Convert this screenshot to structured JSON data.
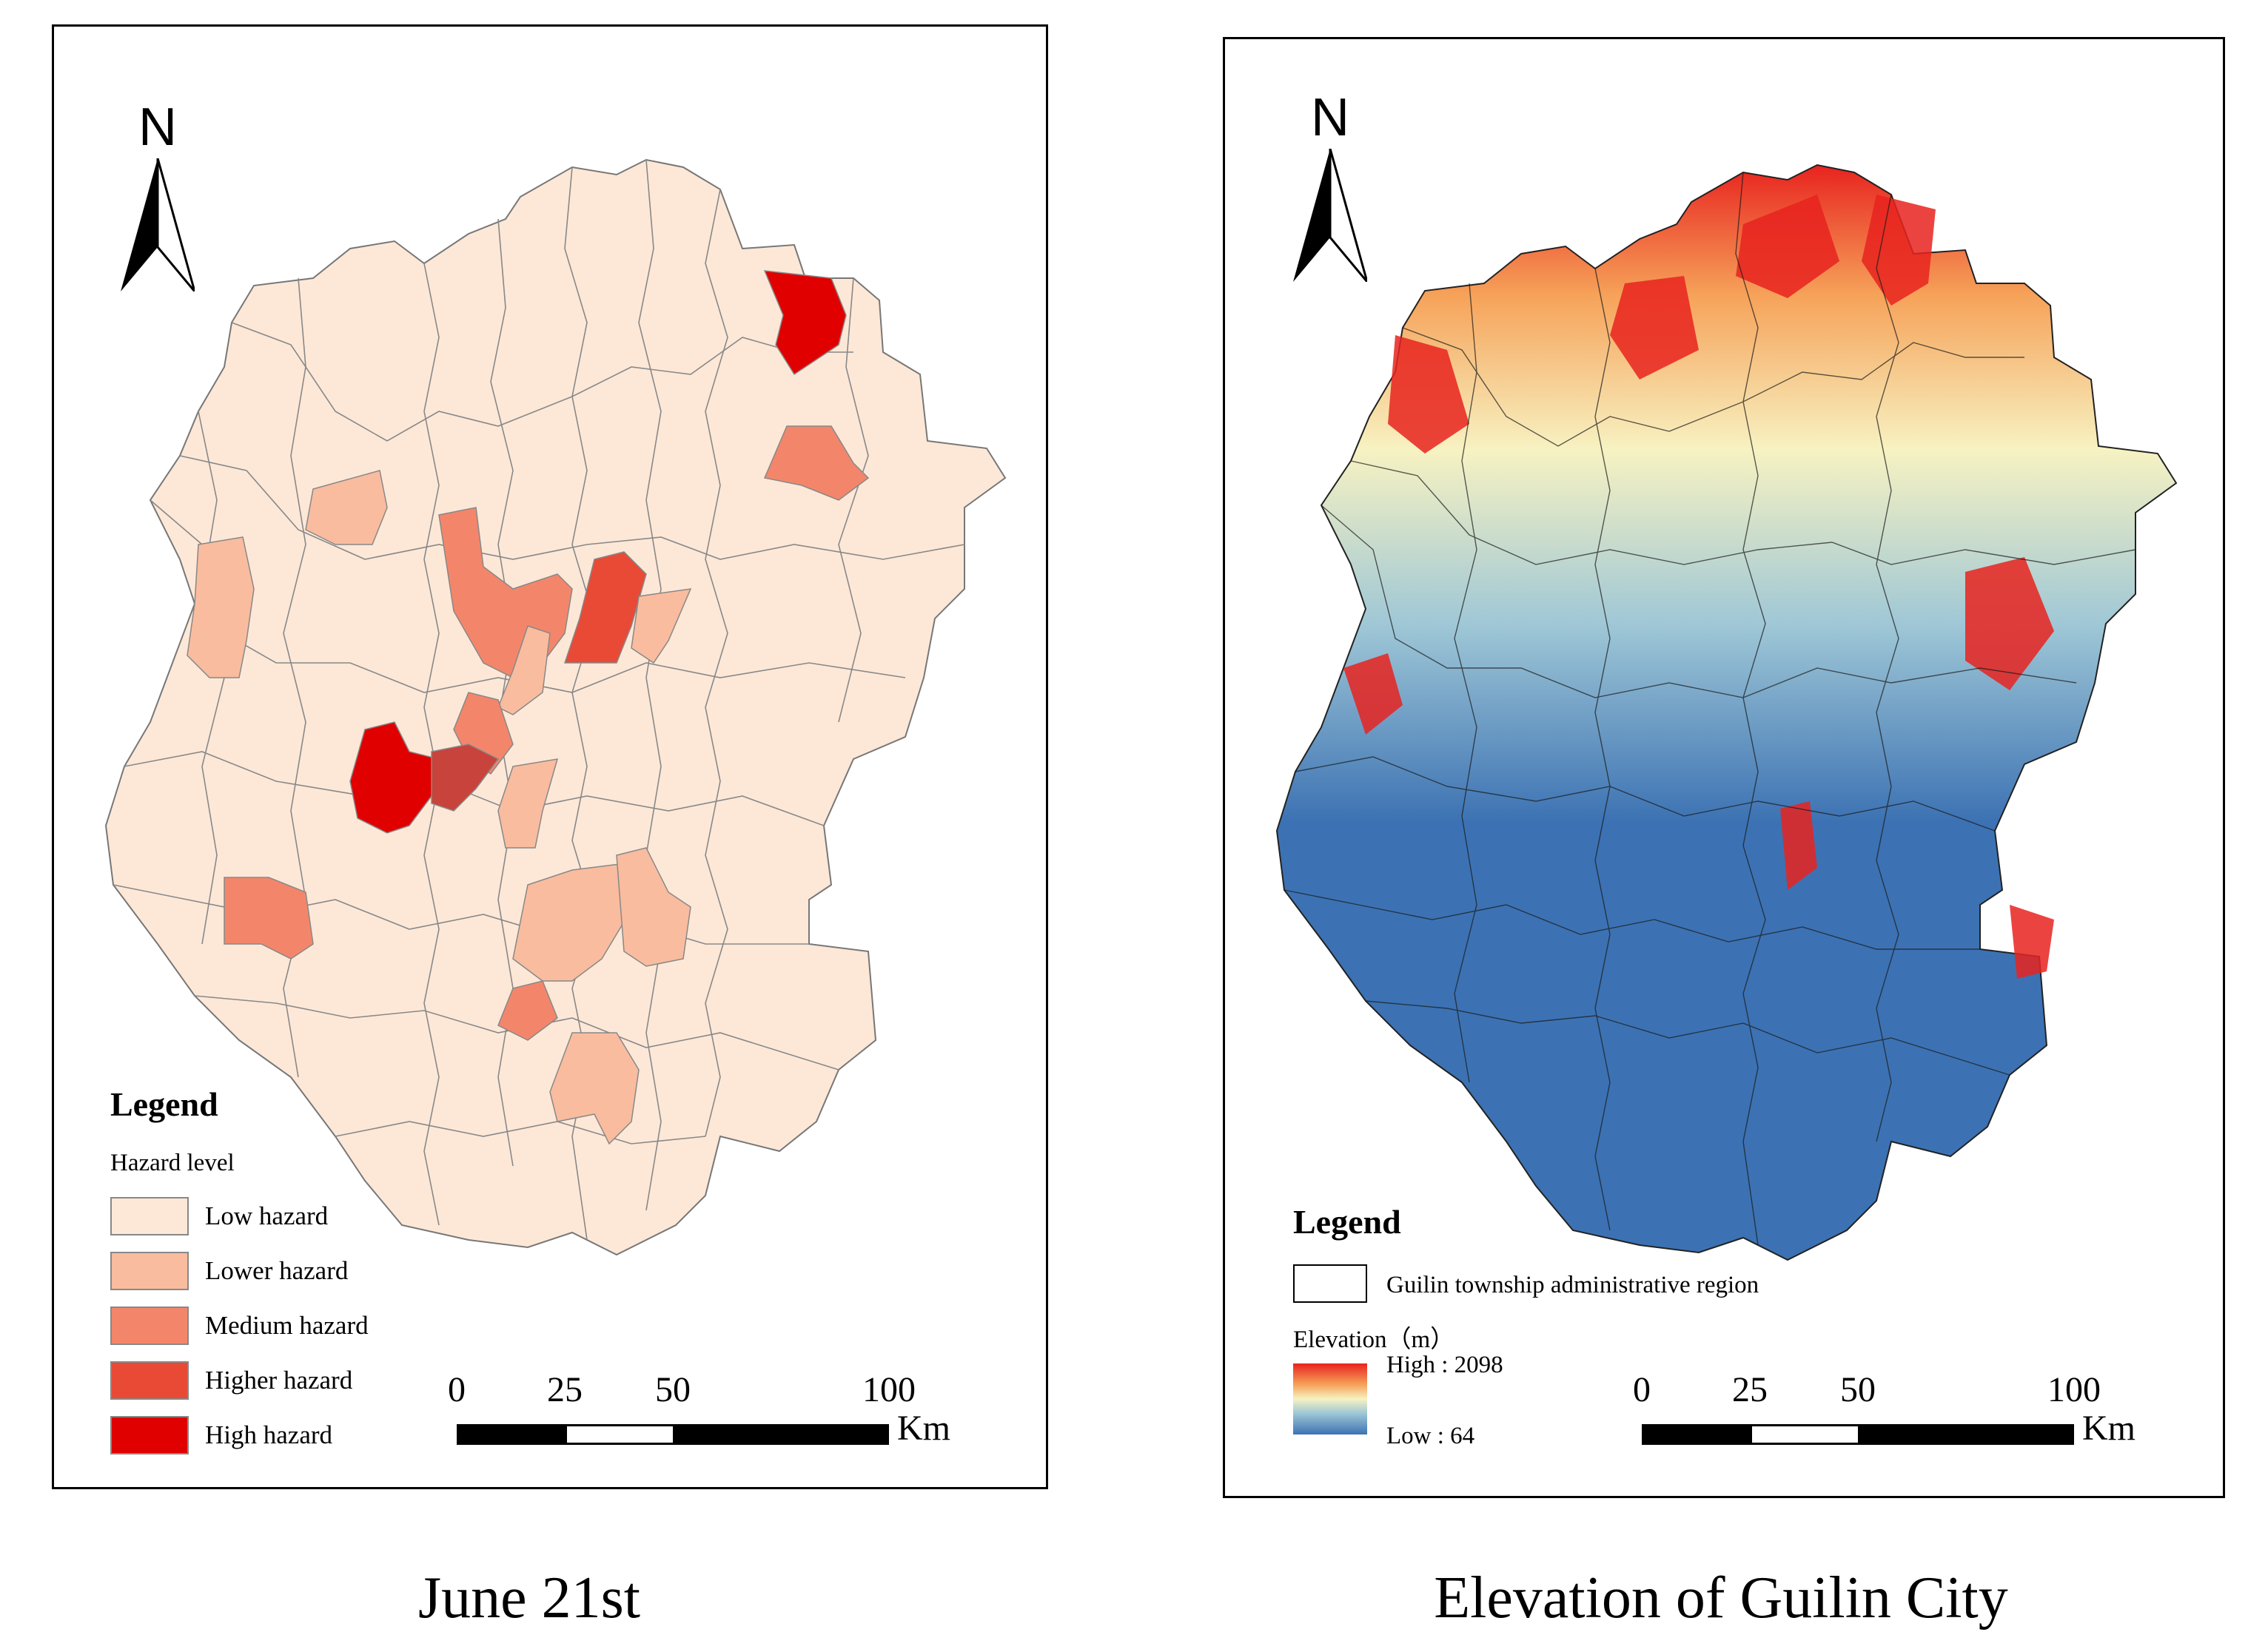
{
  "left_map": {
    "legend_title": "Legend",
    "legend_subtitle": "Hazard level",
    "legend_items": [
      {
        "label": "Low hazard",
        "color": "#fde8d8"
      },
      {
        "label": "Lower hazard",
        "color": "#f9bc9f"
      },
      {
        "label": "Medium hazard",
        "color": "#f3866a"
      },
      {
        "label": "Higher hazard",
        "color": "#e84a36"
      },
      {
        "label": "High hazard",
        "color": "#e00000"
      }
    ],
    "north_label": "N",
    "scale": {
      "ticks": [
        "0",
        "25",
        "50",
        "100"
      ],
      "unit": "Km"
    },
    "caption": "June 21st"
  },
  "right_map": {
    "legend_title": "Legend",
    "region_label": "Guilin township administrative region",
    "elevation_title": "Elevation（m）",
    "elevation_high": "High : 2098",
    "elevation_low": "Low : 64",
    "colors": {
      "high": "#e8231f",
      "mid": "#f7f2c2",
      "low": "#3c72b3"
    },
    "north_label": "N",
    "scale": {
      "ticks": [
        "0",
        "25",
        "50",
        "100"
      ],
      "unit": "Km"
    },
    "caption": "Elevation of Guilin City"
  }
}
